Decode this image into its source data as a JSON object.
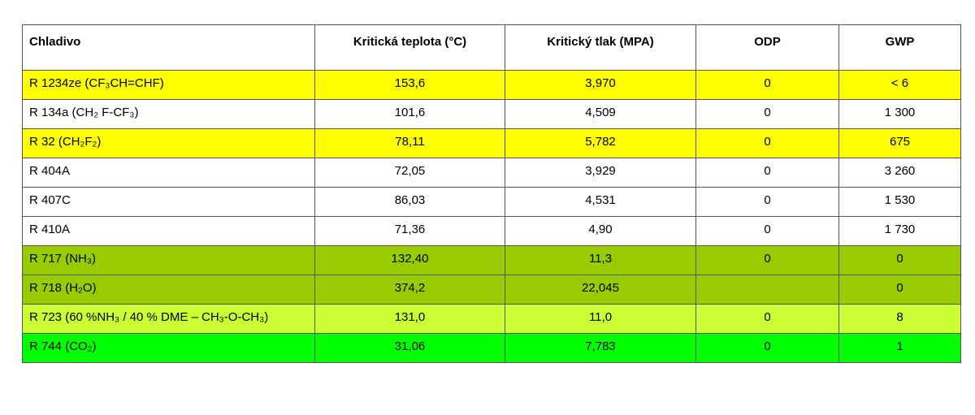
{
  "table": {
    "header": [
      "Chladivo",
      "Kritická teplota (°C)",
      "Kritický tlak (MPA)",
      "ODP",
      "GWP"
    ],
    "rows": [
      {
        "cells": [
          "R 1234ze (CF₃CH=CHF)",
          "153,6",
          "3,970",
          "0",
          "< 6"
        ],
        "color": "#ffff00"
      },
      {
        "cells": [
          "R 134a (CH₂ F-CF₃)",
          "101,6",
          "4,509",
          "0",
          "1 300"
        ],
        "color": "#ffffff"
      },
      {
        "cells": [
          "R 32  (CH₂F₂)",
          "78,11",
          "5,782",
          "0",
          "675"
        ],
        "color": "#ffff00"
      },
      {
        "cells": [
          "R 404A",
          "72,05",
          "3,929",
          "0",
          "3 260"
        ],
        "color": "#ffffff"
      },
      {
        "cells": [
          "R 407C",
          "86,03",
          "4,531",
          "0",
          "1 530"
        ],
        "color": "#ffffff"
      },
      {
        "cells": [
          "R 410A",
          "71,36",
          "4,90",
          "0",
          "1 730"
        ],
        "color": "#ffffff"
      },
      {
        "cells": [
          "R 717 (NH₃)",
          "132,40",
          "11,3",
          "0",
          "0"
        ],
        "color": "#99cc00"
      },
      {
        "cells": [
          "R 718 (H₂O)",
          "374,2",
          "22,045",
          null,
          "0"
        ],
        "color": "#99cc00"
      },
      {
        "cells": [
          "R 723 (60 %NH₃ / 40 % DME – CH₃-O-CH₃)",
          "131,0",
          "11,0",
          "0",
          "8"
        ],
        "color": "#ccff33"
      },
      {
        "cells": [
          "R 744 (CO₂)",
          "31,06",
          "7,783",
          "0",
          "1"
        ],
        "color": "#00ff00"
      }
    ]
  }
}
